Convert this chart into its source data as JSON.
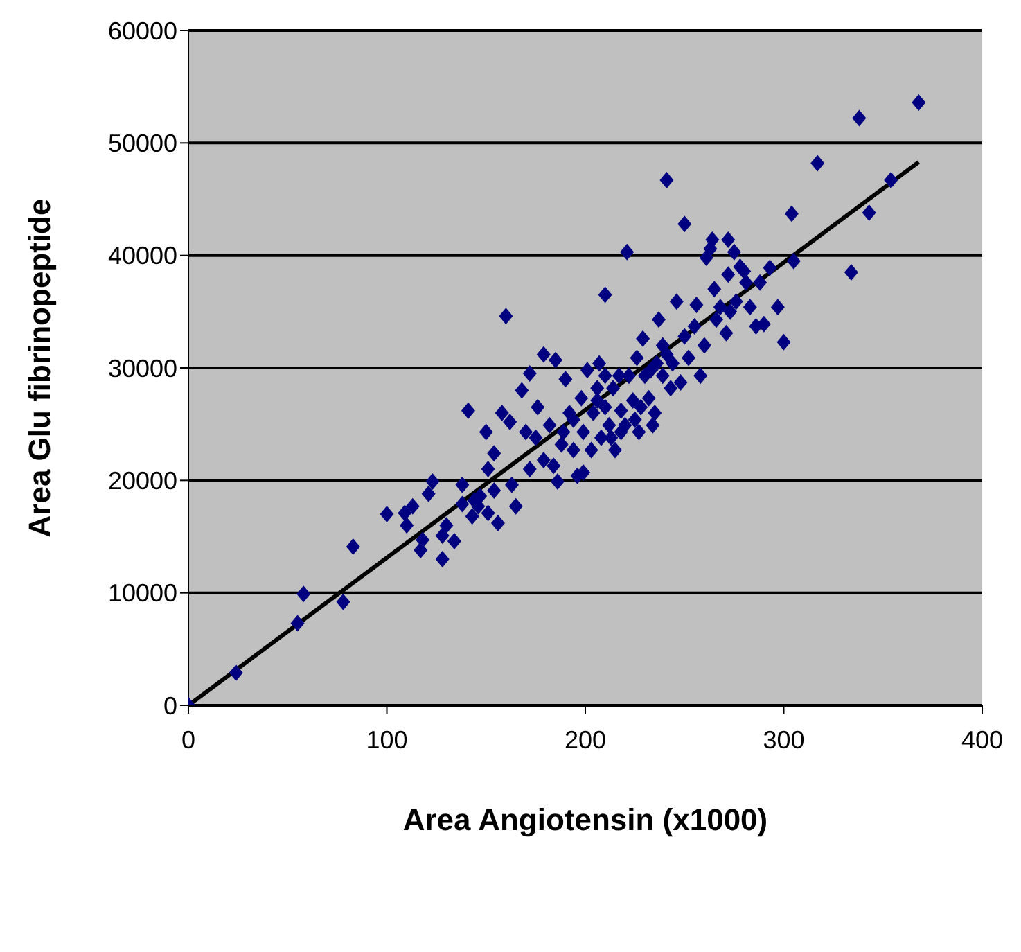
{
  "chart_data": {
    "type": "scatter",
    "xlabel": "Area Angiotensin (x1000)",
    "ylabel": "Area Glu fibrinopeptide",
    "xlim": [
      0,
      400
    ],
    "xticks": [
      0,
      100,
      200,
      300,
      400
    ],
    "ylim": [
      0,
      60000
    ],
    "yticks": [
      0,
      10000,
      20000,
      30000,
      40000,
      50000,
      60000
    ],
    "grid": "y",
    "legend": false,
    "series": [
      {
        "type": "scatter",
        "marker": "diamond",
        "color": "#000080",
        "x": [
          0,
          24,
          55,
          58,
          78,
          83,
          100,
          110,
          109,
          113,
          117,
          118,
          123,
          128,
          128,
          134,
          130,
          138,
          141,
          143,
          147,
          151,
          150,
          154,
          151,
          156,
          154,
          160,
          158,
          162,
          163,
          165,
          168,
          170,
          172,
          172,
          175,
          179,
          176,
          179,
          182,
          184,
          186,
          188,
          185,
          190,
          192,
          194,
          196,
          198,
          199,
          201,
          203,
          204,
          206,
          207,
          208,
          210,
          210,
          212,
          214,
          215,
          217,
          218,
          220,
          221,
          222,
          224,
          226,
          227,
          229,
          230,
          232,
          234,
          235,
          237,
          239,
          241,
          241,
          243,
          244,
          246,
          248,
          250,
          250,
          252,
          255,
          256,
          258,
          260,
          261,
          263,
          264,
          265,
          266,
          268,
          271,
          272,
          272,
          273,
          275,
          276,
          278,
          280,
          281,
          283,
          286,
          288,
          290,
          293,
          297,
          300,
          305,
          304,
          317,
          334,
          338,
          343,
          354,
          368,
          189,
          194,
          199,
          206,
          213,
          218,
          225,
          228,
          233,
          236,
          239,
          210,
          138,
          144,
          146,
          121
        ],
        "values": [
          0,
          2900,
          7300,
          9900,
          9200,
          14100,
          17000,
          16000,
          17100,
          17700,
          13800,
          14700,
          19900,
          15100,
          13000,
          14600,
          16000,
          17900,
          26200,
          16800,
          18600,
          21000,
          24300,
          22400,
          17100,
          16200,
          19100,
          34600,
          26000,
          25200,
          19600,
          17700,
          28000,
          24300,
          29500,
          21000,
          23800,
          31200,
          26500,
          21800,
          24900,
          21300,
          19900,
          23200,
          30700,
          29000,
          26000,
          22700,
          20400,
          27300,
          24300,
          29800,
          22700,
          26000,
          28200,
          30400,
          23800,
          36500,
          26500,
          24900,
          28200,
          22700,
          29300,
          26200,
          24900,
          40300,
          29300,
          27100,
          30900,
          24300,
          32600,
          29300,
          27300,
          24900,
          26000,
          34300,
          29300,
          31200,
          46700,
          28200,
          30400,
          35900,
          28700,
          42800,
          32800,
          30900,
          33700,
          35600,
          29300,
          32000,
          39800,
          40600,
          41400,
          37000,
          34300,
          35400,
          33100,
          38300,
          41400,
          35000,
          40300,
          35900,
          39000,
          38600,
          37600,
          35400,
          33700,
          37600,
          33900,
          38900,
          35400,
          32300,
          39500,
          43700,
          48200,
          38500,
          52200,
          43800,
          46700,
          53600,
          24300,
          25400,
          20700,
          27100,
          23800,
          24300,
          25400,
          26500,
          29800,
          30400,
          32000,
          29300,
          19600,
          18200,
          17700,
          18800
        ]
      },
      {
        "type": "line",
        "marker": "none",
        "line_style": "solid",
        "color": "#000000",
        "x": [
          0,
          368
        ],
        "values": [
          0,
          48300
        ]
      }
    ]
  }
}
